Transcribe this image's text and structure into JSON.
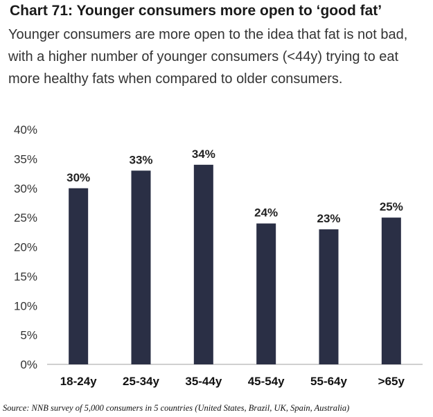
{
  "title": "Chart 71: Younger consumers more open to ‘good fat’",
  "subtitle": "Younger consumers are more open to the idea that fat is not bad, with a higher number of younger consumers (<44y) trying to eat more healthy fats when compared to older consumers.",
  "source": "Source: NNB survey of 5,000 consumers in 5 countries (United States, Brazil, UK, Spain, Australia)",
  "colors": {
    "bar": "#2a2f45",
    "axis": "#bfbfbf",
    "text": "#222222"
  },
  "chart_data": {
    "type": "bar",
    "categories": [
      "18-24y",
      "25-34y",
      "35-44y",
      "45-54y",
      "55-64y",
      ">65y"
    ],
    "values": [
      30,
      33,
      34,
      24,
      23,
      25
    ],
    "data_labels": [
      "30%",
      "33%",
      "34%",
      "24%",
      "23%",
      "25%"
    ],
    "ylim": [
      0,
      40
    ],
    "yticks": [
      "0%",
      "5%",
      "10%",
      "15%",
      "20%",
      "25%",
      "30%",
      "35%",
      "40%"
    ],
    "grid": false,
    "legend": "none"
  }
}
